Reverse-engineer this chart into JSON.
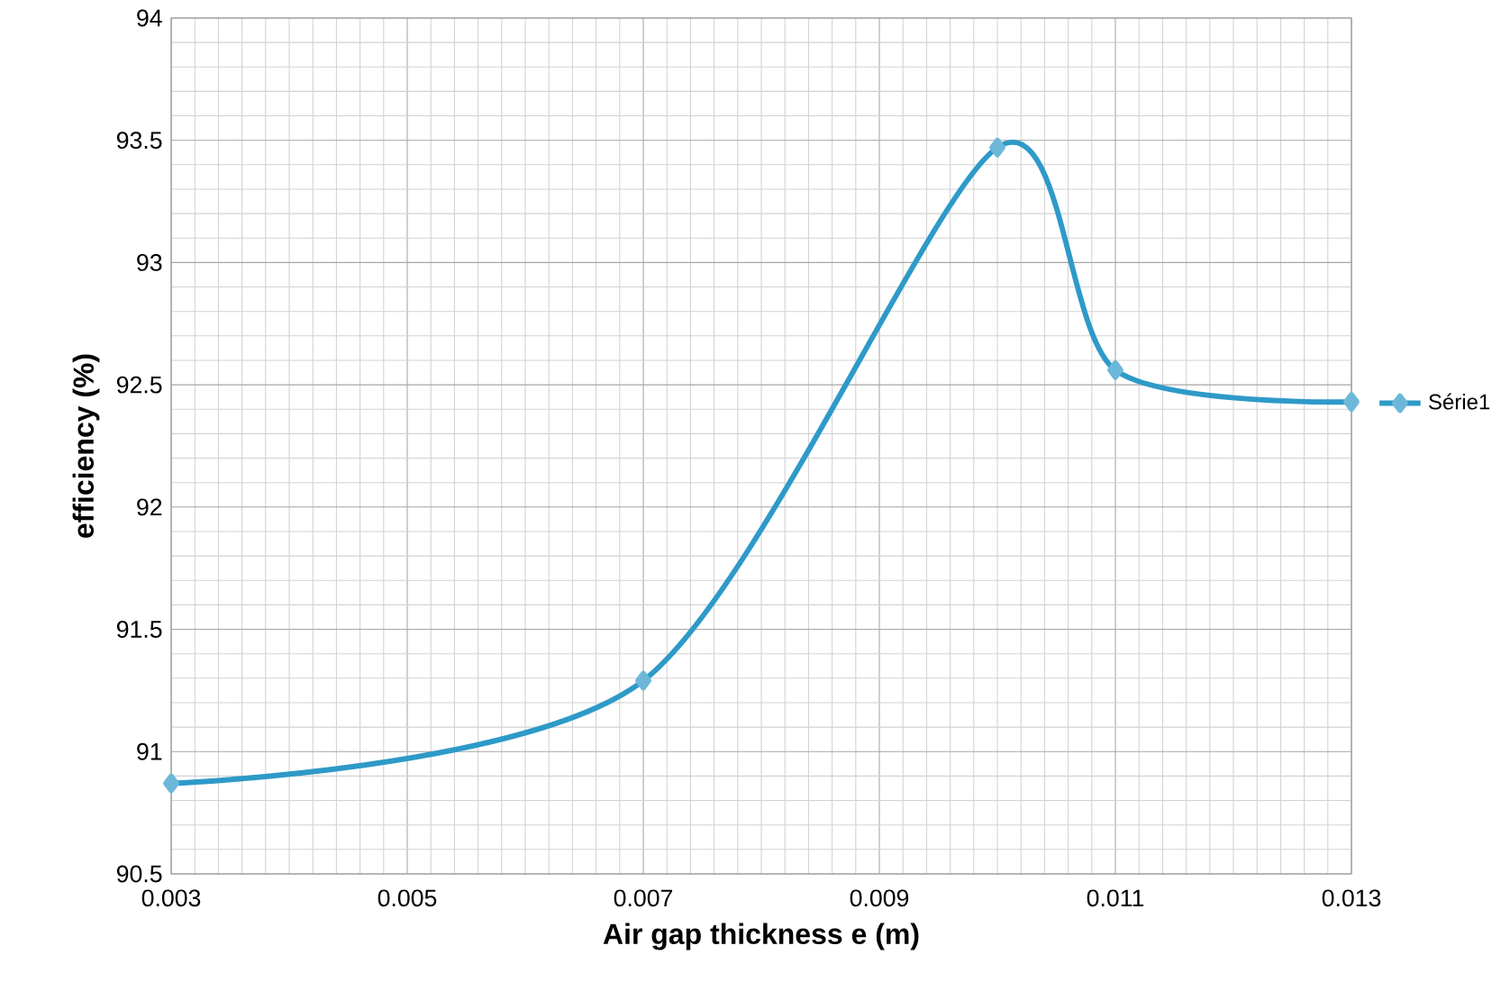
{
  "chart_data": {
    "type": "line",
    "xlabel": "Air gap thickness e (m)",
    "ylabel": "efficiency (%)",
    "x": [
      0.003,
      0.007,
      0.01,
      0.011,
      0.013
    ],
    "series": [
      {
        "name": "Série1",
        "color": "#2e9ac8",
        "values": [
          90.87,
          91.29,
          93.47,
          92.56,
          92.43
        ]
      }
    ],
    "xlim": [
      0.003,
      0.013
    ],
    "xticks": [
      0.003,
      0.005,
      0.007,
      0.009,
      0.011,
      0.013
    ],
    "ylim": [
      90.5,
      94
    ],
    "yticks": [
      90.5,
      91,
      91.5,
      92,
      92.5,
      93,
      93.5,
      94
    ],
    "grid": true,
    "legend": "right",
    "marker": "diamond",
    "line_style": "solid"
  }
}
